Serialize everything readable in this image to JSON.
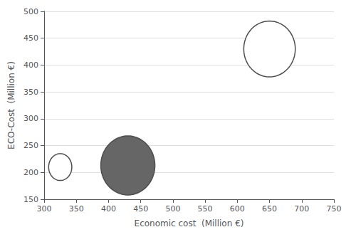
{
  "chart_data": {
    "type": "bubble",
    "xlabel": "Economic cost  (Million €)",
    "ylabel": "ECO-Cost  (Million €)",
    "x": [
      325,
      430,
      650
    ],
    "values": [
      210,
      213,
      430
    ],
    "rx": [
      18,
      42,
      40
    ],
    "ry": [
      25,
      55,
      52
    ],
    "colors": [
      "white",
      "#666666",
      "white"
    ],
    "xlim": [
      300,
      750
    ],
    "xticks": [
      300,
      350,
      400,
      450,
      500,
      550,
      600,
      650,
      700,
      750
    ],
    "ylim": [
      150,
      500
    ],
    "yticks": [
      150,
      200,
      250,
      300,
      350,
      400,
      450,
      500
    ],
    "grid": "y"
  }
}
